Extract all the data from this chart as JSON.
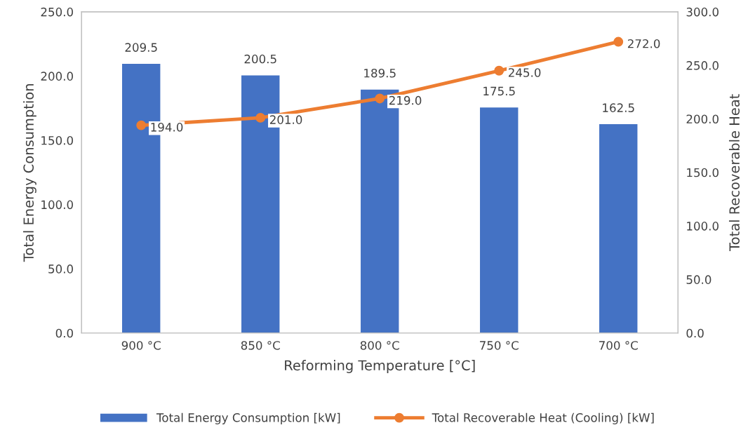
{
  "chart_data": {
    "type": "bar",
    "xlabel": "Reforming Temperature [°C]",
    "ylabel": "Total Energy Consumption",
    "y2label": "Total Recoverable Heat",
    "categories": [
      "900 °C",
      "850 °C",
      "800 °C",
      "750 °C",
      "700 °C"
    ],
    "series": [
      {
        "name": "Total Energy Consumption [kW]",
        "color": "#4472c4",
        "values": [
          209.5,
          200.5,
          189.5,
          175.5,
          162.5
        ],
        "value_labels": [
          "209.5",
          "200.5",
          "189.5",
          "175.5",
          "162.5"
        ]
      },
      {
        "name": "Total Recoverable Heat (Cooling) [kW]",
        "type": "line",
        "axis": "y2",
        "color": "#ed7d31",
        "marker": "circle",
        "values": [
          194.0,
          201.0,
          219.0,
          245.0,
          272.0
        ],
        "value_labels": [
          "194.0",
          "201.0",
          "219.0",
          "245.0",
          "272.0"
        ]
      }
    ],
    "ylim": [
      0,
      250
    ],
    "yticks": [
      {
        "value": 0,
        "label": "0.0"
      },
      {
        "value": 50,
        "label": "50.0"
      },
      {
        "value": 100,
        "label": "100.0"
      },
      {
        "value": 150,
        "label": "150.0"
      },
      {
        "value": 200,
        "label": "200.0"
      },
      {
        "value": 250,
        "label": "250.0"
      }
    ],
    "y2lim": [
      0,
      300
    ],
    "y2ticks": [
      {
        "value": 0,
        "label": "0.0"
      },
      {
        "value": 50,
        "label": "50.0"
      },
      {
        "value": 100,
        "label": "100.0"
      },
      {
        "value": 150,
        "label": "150.0"
      },
      {
        "value": 200,
        "label": "200.0"
      },
      {
        "value": 250,
        "label": "250.0"
      },
      {
        "value": 300,
        "label": "300.0"
      }
    ],
    "grid": false,
    "legend": "bottom"
  }
}
